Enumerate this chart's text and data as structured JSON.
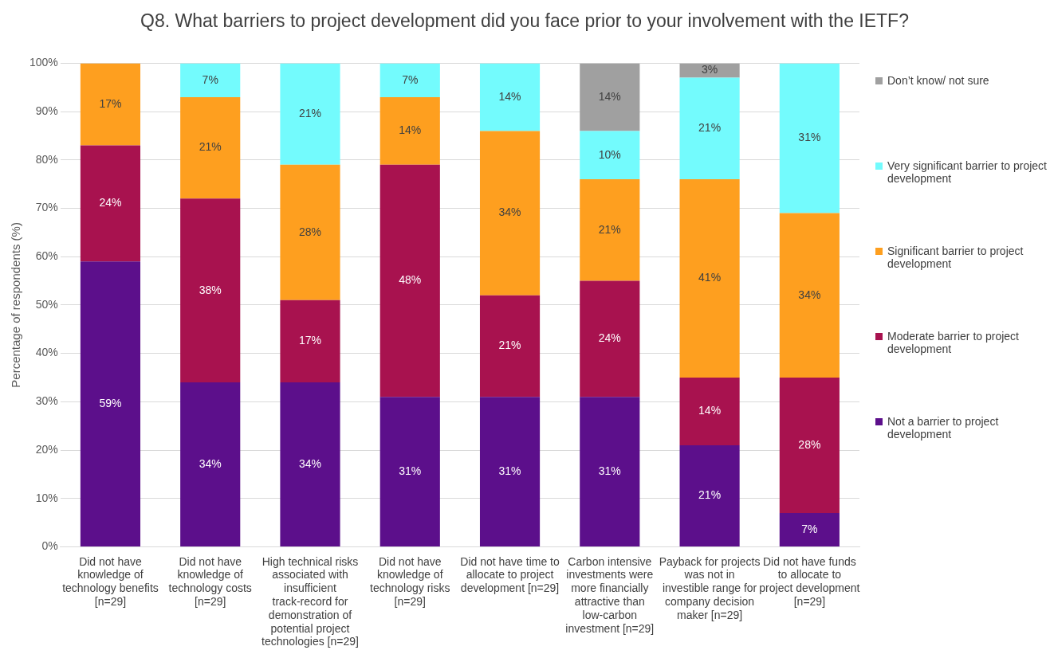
{
  "chart_data": {
    "type": "bar",
    "stacked": true,
    "title": "Q8. What barriers to project development did you face prior to your involvement with the IETF?",
    "ylabel": "Percentage of respondents (%)",
    "categories": [
      "Did not have knowledge of technology benefits [n=29]",
      "Did not have knowledge of technology costs [n=29]",
      "High technical risks associated with insufficient track-record for demonstration of potential project technologies [n=29]",
      "Did not have knowledge of technology risks [n=29]",
      "Did not have time to allocate to project development [n=29]",
      "Carbon intensive investments were more financially attractive than low-carbon investment [n=29]",
      "Payback for projects was not in investible range for company decision maker [n=29]",
      "Did not have funds to allocate to project development [n=29]"
    ],
    "series": [
      {
        "name": "Not a barrier to project development",
        "color": "#5c0f8b",
        "values": [
          59,
          34,
          34,
          31,
          31,
          31,
          21,
          7
        ],
        "value_labels": [
          "59%",
          "34%",
          "34%",
          "31%",
          "31%",
          "31%",
          "21%",
          "7%"
        ]
      },
      {
        "name": "Moderate barrier to project development",
        "color": "#a8124f",
        "values": [
          24,
          38,
          17,
          48,
          21,
          24,
          14,
          28
        ],
        "value_labels": [
          "24%",
          "38%",
          "17%",
          "48%",
          "21%",
          "24%",
          "14%",
          "28%"
        ]
      },
      {
        "name": "Significant barrier to project development",
        "color": "#fe9f1f",
        "values": [
          17,
          21,
          28,
          14,
          34,
          21,
          41,
          34
        ],
        "value_labels": [
          "17%",
          "21%",
          "28%",
          "14%",
          "34%",
          "21%",
          "41%",
          "34%"
        ]
      },
      {
        "name": "Very significant barrier to project development",
        "color": "#73fbfd",
        "values": [
          0,
          7,
          21,
          7,
          14,
          10,
          21,
          31
        ],
        "value_labels": [
          null,
          "7%",
          "21%",
          "7%",
          "14%",
          "10%",
          "21%",
          "31%"
        ]
      },
      {
        "name": "Don’t know/ not sure",
        "color": "#a0a0a0",
        "values": [
          0,
          0,
          0,
          0,
          0,
          14,
          3,
          0
        ],
        "value_labels": [
          null,
          null,
          null,
          null,
          null,
          "14%",
          "3%",
          null
        ]
      }
    ],
    "ylim": [
      0,
      100
    ],
    "yticks": [
      {
        "value": 0,
        "label": "0%"
      },
      {
        "value": 10,
        "label": "10%"
      },
      {
        "value": 20,
        "label": "20%"
      },
      {
        "value": 30,
        "label": "30%"
      },
      {
        "value": 40,
        "label": "40%"
      },
      {
        "value": 50,
        "label": "50%"
      },
      {
        "value": 60,
        "label": "60%"
      },
      {
        "value": 70,
        "label": "70%"
      },
      {
        "value": 80,
        "label": "80%"
      },
      {
        "value": 90,
        "label": "90%"
      },
      {
        "value": 100,
        "label": "100%"
      }
    ],
    "grid": "y",
    "legend": "right"
  }
}
